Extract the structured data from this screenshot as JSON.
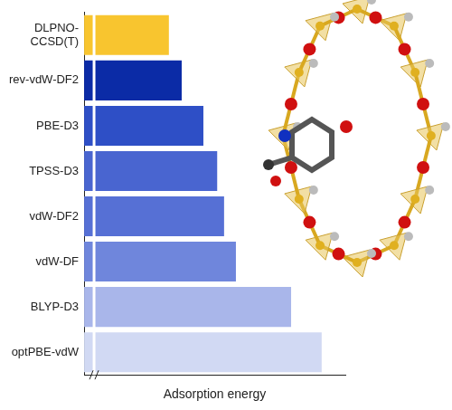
{
  "chart_data": {
    "type": "bar",
    "orientation": "horizontal",
    "x_label": "Adsorption energy",
    "categories": [
      "DLPNO-\nCCSD(T)",
      "rev-vdW-DF2",
      "PBE-D3",
      "TPSS-D3",
      "vdW-DF2",
      "vdW-DF",
      "BLYP-D3",
      "optPBE-vdW"
    ],
    "values": [
      86,
      99,
      121,
      135,
      142,
      154,
      210,
      241
    ],
    "colors": [
      "#f8c52f",
      "#0b2ba6",
      "#2e4fc6",
      "#4965d0",
      "#5670d5",
      "#6f86dc",
      "#a9b6ea",
      "#d1d9f3"
    ],
    "xlim": [
      0,
      265
    ],
    "grid": false,
    "tick_labels": "y"
  }
}
